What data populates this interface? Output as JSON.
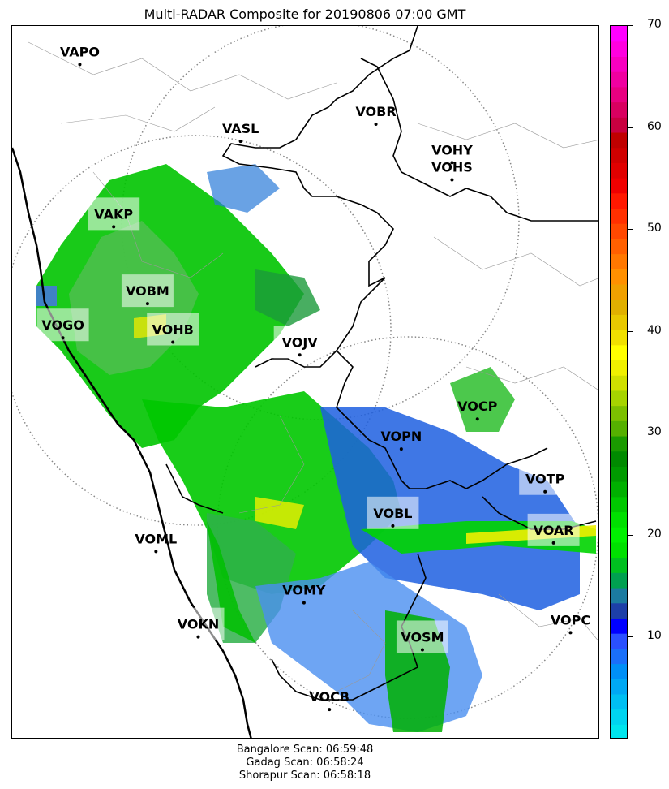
{
  "title": "Multi-RADAR Composite for 20190806 07:00 GMT",
  "stations": [
    {
      "name": "VAPO",
      "lon": 74.0,
      "lat": 18.6,
      "hl": false
    },
    {
      "name": "VASL",
      "lon": 75.9,
      "lat": 17.7,
      "hl": false
    },
    {
      "name": "VOBR",
      "lon": 77.5,
      "lat": 17.9,
      "hl": false
    },
    {
      "name": "VOHY",
      "lon": 78.4,
      "lat": 17.45,
      "hl": false
    },
    {
      "name": "VOHS",
      "lon": 78.4,
      "lat": 17.25,
      "hl": false
    },
    {
      "name": "VAKP",
      "lon": 74.4,
      "lat": 16.7,
      "hl": true
    },
    {
      "name": "VOBM",
      "lon": 74.8,
      "lat": 15.8,
      "hl": true
    },
    {
      "name": "VOGO",
      "lon": 73.8,
      "lat": 15.4,
      "hl": true
    },
    {
      "name": "VOHB",
      "lon": 75.1,
      "lat": 15.35,
      "hl": true
    },
    {
      "name": "VOJV",
      "lon": 76.6,
      "lat": 15.2,
      "hl": true
    },
    {
      "name": "VOCP",
      "lon": 78.7,
      "lat": 14.45,
      "hl": false
    },
    {
      "name": "VOPN",
      "lon": 77.8,
      "lat": 14.1,
      "hl": false
    },
    {
      "name": "VOTP",
      "lon": 79.5,
      "lat": 13.6,
      "hl": true
    },
    {
      "name": "VOBL",
      "lon": 77.7,
      "lat": 13.2,
      "hl": true
    },
    {
      "name": "VOAR",
      "lon": 79.6,
      "lat": 13.0,
      "hl": true
    },
    {
      "name": "VOML",
      "lon": 74.9,
      "lat": 12.9,
      "hl": false
    },
    {
      "name": "VOMY",
      "lon": 76.65,
      "lat": 12.3,
      "hl": false
    },
    {
      "name": "VOKN",
      "lon": 75.4,
      "lat": 11.9,
      "hl": true
    },
    {
      "name": "VOPC",
      "lon": 79.8,
      "lat": 11.95,
      "hl": false
    },
    {
      "name": "VOSM",
      "lon": 78.05,
      "lat": 11.75,
      "hl": true
    },
    {
      "name": "VOCB",
      "lon": 76.95,
      "lat": 11.05,
      "hl": false
    }
  ],
  "colorbar": {
    "range": [
      0,
      70
    ],
    "ticks": [
      "10",
      "20",
      "30",
      "40",
      "50",
      "60",
      "70"
    ],
    "colors": [
      "#00e5ee",
      "#00d4f0",
      "#00bff2",
      "#00a8f4",
      "#008ff6",
      "#1a6ffa",
      "#2a50ff",
      "#0000ff",
      "#1d3fa8",
      "#1b7ba0",
      "#00a050",
      "#00c020",
      "#00e000",
      "#00f000",
      "#00e000",
      "#00c800",
      "#00b000",
      "#009a00",
      "#008a00",
      "#1a9a00",
      "#55b000",
      "#7cc000",
      "#a6d400",
      "#d0e000",
      "#f0f000",
      "#ffff00",
      "#f0e000",
      "#e8c800",
      "#e0b000",
      "#f0a000",
      "#ff9000",
      "#ff7800",
      "#ff6000",
      "#ff4800",
      "#ff3000",
      "#ff1800",
      "#f00000",
      "#e00000",
      "#d00000",
      "#c00000",
      "#c80040",
      "#d80060",
      "#e80080",
      "#f000a0",
      "#f800c0",
      "#ff00e0",
      "#ff00ff"
    ],
    "units_label": ""
  },
  "footer": [
    "Bangalore Scan: 06:59:48",
    "Gadag Scan: 06:58:24",
    "Shorapur Scan: 06:58:18"
  ]
}
